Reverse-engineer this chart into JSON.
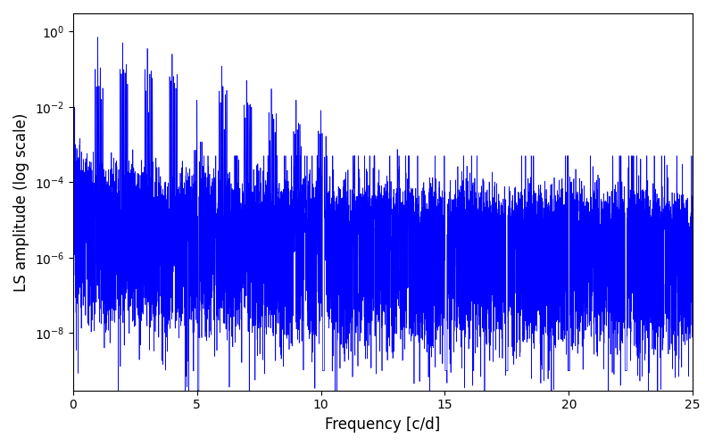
{
  "line_color": "#0000ff",
  "line_width": 0.5,
  "xlabel": "Frequency [c/d]",
  "ylabel": "LS amplitude (log scale)",
  "xlim": [
    0,
    25
  ],
  "ylim_log": [
    3e-10,
    3.0
  ],
  "yscale": "log",
  "yticks": [
    1e-08,
    1e-06,
    0.0001,
    0.01,
    1.0
  ],
  "freq_max": 25.0,
  "n_points": 8000,
  "seed": 12345,
  "background_color": "#ffffff",
  "figsize": [
    8.0,
    5.0
  ],
  "dpi": 100,
  "label_fontsize": 12
}
